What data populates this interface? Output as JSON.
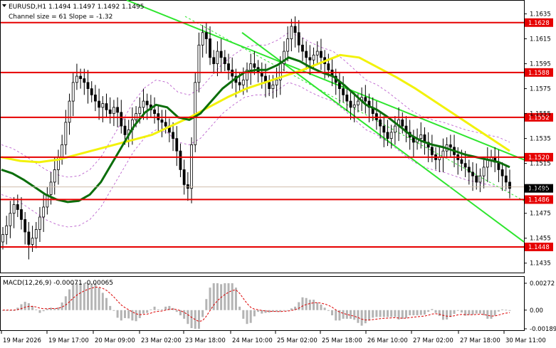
{
  "header": {
    "symbol_line": "EURUSD,H1  1.1494 1.1497 1.1492 1.1495",
    "channel_line": "Channel size = 61 Slope = -1.32"
  },
  "macd": {
    "label": "MACD(12,26,9) -0.00071 -0.00065",
    "ticks": [
      "0.00272",
      "0.00",
      "-0.00189"
    ]
  },
  "price_axis": {
    "ticks": [
      "1.1635",
      "1.1615",
      "1.1595",
      "1.1575",
      "1.1555",
      "1.1535",
      "1.1515",
      "1.1495",
      "1.1475",
      "1.1455",
      "1.1435"
    ],
    "current_price": "1.1495",
    "hidden_tag": "1.1497"
  },
  "levels": [
    {
      "label": "1.1628",
      "price": 1.1628
    },
    {
      "label": "1.1588",
      "price": 1.1588
    },
    {
      "label": "1.1552",
      "price": 1.1552
    },
    {
      "label": "1.1520",
      "price": 1.152
    },
    {
      "label": "1.1486",
      "price": 1.1486
    },
    {
      "label": "1.1448",
      "price": 1.1448
    }
  ],
  "time_axis": [
    "19 Mar 2026",
    "19 Mar 17:00",
    "20 Mar 09:00",
    "23 Mar 02:00",
    "23 Mar 18:00",
    "24 Mar 10:00",
    "25 Mar 02:00",
    "25 Mar 18:00",
    "26 Mar 10:00",
    "27 Mar 02:00",
    "27 Mar 18:00",
    "30 Mar 11:00"
  ],
  "colors": {
    "level_line": "#e60000",
    "level_tag": "#e60000",
    "channel": "#2ee52e",
    "ma_fast": "#0b6e0b",
    "ma_slow": "#f2f20a",
    "bands": "#b450c8",
    "candles": "#000000",
    "macd_hist": "#b4b4b4",
    "macd_signal": "#dc0000"
  },
  "chart_data": {
    "type": "candlestick",
    "instrument": "EURUSD",
    "timeframe": "H1",
    "ylim": [
      1.1428,
      1.1645
    ],
    "macd_ylim": [
      -0.00189,
      0.00272
    ],
    "closes": [
      1.1458,
      1.1465,
      1.1475,
      1.1482,
      1.1478,
      1.147,
      1.146,
      1.145,
      1.1455,
      1.1462,
      1.1472,
      1.148,
      1.149,
      1.15,
      1.151,
      1.152,
      1.153,
      1.1548,
      1.1565,
      1.158,
      1.1585,
      1.1583,
      1.158,
      1.1575,
      1.157,
      1.1565,
      1.156,
      1.1563,
      1.1558,
      1.1555,
      1.156,
      1.1556,
      1.1545,
      1.1538,
      1.1542,
      1.155,
      1.1555,
      1.156,
      1.1565,
      1.1562,
      1.1558,
      1.1555,
      1.155,
      1.1548,
      1.1545,
      1.154,
      1.1535,
      1.1525,
      1.151,
      1.1498,
      1.1495,
      1.153,
      1.158,
      1.161,
      1.162,
      1.1615,
      1.16,
      1.1595,
      1.1605,
      1.16,
      1.1595,
      1.159,
      1.1585,
      1.158,
      1.1578,
      1.1582,
      1.159,
      1.1595,
      1.1592,
      1.1588,
      1.1585,
      1.158,
      1.1575,
      1.1578,
      1.1582,
      1.1595,
      1.1605,
      1.1615,
      1.1625,
      1.162,
      1.161,
      1.1605,
      1.16,
      1.1598,
      1.1602,
      1.1605,
      1.16,
      1.1595,
      1.159,
      1.1585,
      1.158,
      1.1575,
      1.157,
      1.1565,
      1.156,
      1.1562,
      1.1565,
      1.1568,
      1.1565,
      1.156,
      1.1555,
      1.155,
      1.1545,
      1.154,
      1.1535,
      1.154,
      1.1545,
      1.155,
      1.1545,
      1.154,
      1.1536,
      1.1532,
      1.1535,
      1.1538,
      1.1532,
      1.1528,
      1.1522,
      1.1518,
      1.152,
      1.1525,
      1.153,
      1.1528,
      1.1522,
      1.1518,
      1.1515,
      1.1512,
      1.1508,
      1.1505,
      1.15,
      1.1505,
      1.1512,
      1.1518,
      1.152,
      1.1516,
      1.151,
      1.1505,
      1.15,
      1.1495
    ],
    "ma_fast": [
      1.151,
      1.1507,
      1.1502,
      1.1496,
      1.149,
      1.1486,
      1.1484,
      1.1485,
      1.149,
      1.15,
      1.1515,
      1.153,
      1.1545,
      1.1556,
      1.1562,
      1.156,
      1.1552,
      1.155,
      1.1555,
      1.1565,
      1.1575,
      1.1582,
      1.1588,
      1.159,
      1.159,
      1.1594,
      1.16,
      1.1597,
      1.1592,
      1.1588,
      1.1585,
      1.1578,
      1.157,
      1.1562,
      1.1558,
      1.1552,
      1.1545,
      1.1538,
      1.1533,
      1.153,
      1.1528,
      1.1525,
      1.1522,
      1.152,
      1.1518,
      1.1516,
      1.1512
    ],
    "ma_fast_x": [
      0,
      10,
      20,
      30,
      40,
      50,
      60,
      70,
      80,
      90,
      100,
      110,
      120,
      130,
      140,
      150,
      160,
      170,
      180,
      190,
      200,
      210,
      220,
      230,
      240,
      250,
      260,
      270,
      280,
      290,
      300,
      310,
      320,
      330,
      340,
      350,
      360,
      370,
      380,
      390,
      400,
      410,
      420,
      430,
      440,
      450,
      460
    ],
    "ma_slow": [
      1.152,
      1.1517,
      1.1516,
      1.1518,
      1.1522,
      1.1526,
      1.153,
      1.1534,
      1.1538,
      1.1545,
      1.1552,
      1.156,
      1.1568,
      1.1575,
      1.158,
      1.1585,
      1.159,
      1.1596,
      1.1602,
      1.16,
      1.1592,
      1.1584,
      1.1575,
      1.1565,
      1.1555,
      1.1545,
      1.1535,
      1.1525
    ],
    "ma_slow_x": [
      0,
      20,
      40,
      60,
      80,
      100,
      120,
      140,
      160,
      180,
      200,
      220,
      240,
      260,
      280,
      300,
      320,
      340,
      360,
      380,
      400,
      420,
      440,
      460,
      480,
      500,
      520,
      540
    ]
  }
}
